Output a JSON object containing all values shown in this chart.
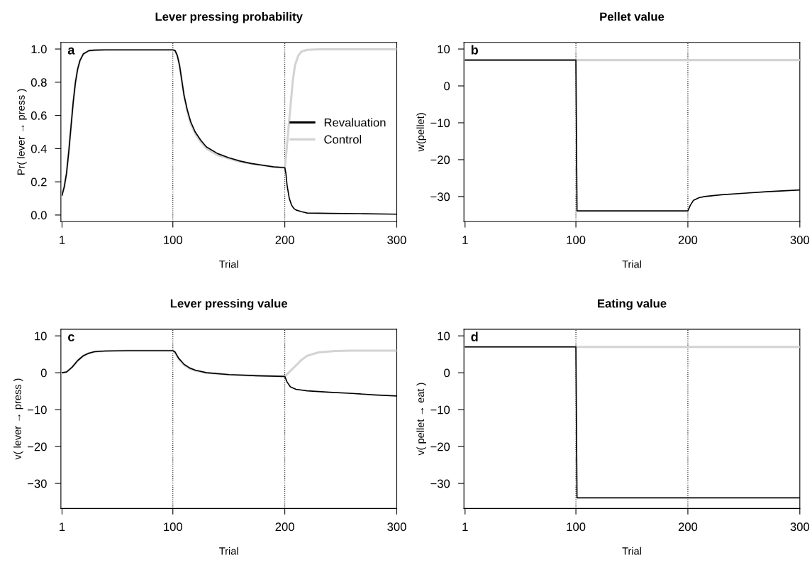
{
  "chart_data": [
    {
      "type": "line",
      "title": "Lever pressing probability",
      "xlabel": "Trial",
      "ylabel": "Pr( lever → press )",
      "annotations": [
        "a"
      ],
      "xlim": [
        0,
        300
      ],
      "xticks": [
        1,
        100,
        200,
        300
      ],
      "ylim": [
        -0.04,
        1.04
      ],
      "yticks": [
        {
          "value": 0,
          "label": "0.0"
        },
        0.2,
        0.4,
        0.6,
        0.8,
        {
          "value": 1,
          "label": "1.0"
        }
      ],
      "legend": "right",
      "grid": false,
      "line_style": "solid",
      "ref_lines": [
        {
          "axis": "x",
          "value": 100,
          "color": "#000000",
          "line_style": "dotted"
        },
        {
          "axis": "x",
          "value": 200,
          "color": "#000000",
          "line_style": "dotted"
        }
      ],
      "series": [
        {
          "name": "Revaluation",
          "color": "#000000",
          "x": [
            1,
            3,
            5,
            7,
            9,
            11,
            13,
            15,
            17,
            20,
            25,
            30,
            40,
            60,
            100,
            102,
            104,
            106,
            108,
            110,
            113,
            116,
            120,
            125,
            130,
            140,
            150,
            160,
            170,
            180,
            190,
            200,
            201,
            202,
            204,
            206,
            208,
            210,
            215,
            220,
            240,
            270,
            300
          ],
          "values": [
            0.12,
            0.17,
            0.25,
            0.38,
            0.53,
            0.68,
            0.8,
            0.88,
            0.93,
            0.97,
            0.99,
            0.993,
            0.995,
            0.995,
            0.995,
            0.99,
            0.96,
            0.9,
            0.81,
            0.72,
            0.63,
            0.56,
            0.5,
            0.45,
            0.41,
            0.37,
            0.345,
            0.325,
            0.31,
            0.3,
            0.29,
            0.285,
            0.25,
            0.18,
            0.1,
            0.06,
            0.04,
            0.03,
            0.02,
            0.012,
            0.01,
            0.008,
            0.005
          ]
        },
        {
          "name": "Control",
          "color": "#d3d3d3",
          "x": [
            1,
            3,
            5,
            7,
            9,
            11,
            13,
            15,
            17,
            20,
            25,
            30,
            40,
            60,
            100,
            102,
            104,
            106,
            108,
            110,
            113,
            116,
            120,
            125,
            130,
            140,
            150,
            160,
            170,
            180,
            190,
            200,
            201,
            203,
            205,
            207,
            209,
            212,
            215,
            220,
            230,
            300
          ],
          "values": [
            0.12,
            0.17,
            0.25,
            0.38,
            0.53,
            0.68,
            0.8,
            0.88,
            0.93,
            0.97,
            0.99,
            0.993,
            0.995,
            0.995,
            0.995,
            0.99,
            0.96,
            0.9,
            0.81,
            0.72,
            0.62,
            0.55,
            0.49,
            0.44,
            0.4,
            0.36,
            0.34,
            0.32,
            0.31,
            0.3,
            0.29,
            0.285,
            0.35,
            0.5,
            0.65,
            0.8,
            0.9,
            0.96,
            0.985,
            0.995,
            0.998,
            0.998
          ]
        }
      ]
    },
    {
      "type": "line",
      "title": "Pellet value",
      "xlabel": "Trial",
      "ylabel": "w(pellet)",
      "annotations": [
        "b"
      ],
      "xlim": [
        0,
        300
      ],
      "xticks": [
        1,
        100,
        200,
        300
      ],
      "ylim": [
        -36.8,
        11.8
      ],
      "yticks": [
        {
          "value": -30,
          "label": "−30"
        },
        {
          "value": -20,
          "label": "−20"
        },
        {
          "value": -10,
          "label": "−10"
        },
        0,
        10
      ],
      "grid": false,
      "line_style": "solid",
      "ref_lines": [
        {
          "axis": "x",
          "value": 100,
          "color": "#000000",
          "line_style": "dotted"
        },
        {
          "axis": "x",
          "value": 200,
          "color": "#000000",
          "line_style": "dotted"
        }
      ],
      "series": [
        {
          "color": "#000000",
          "x": [
            1,
            100,
            101,
            200,
            202,
            205,
            210,
            215,
            230,
            250,
            270,
            300
          ],
          "values": [
            7,
            7,
            -33.9,
            -33.9,
            -32.5,
            -31,
            -30.3,
            -30,
            -29.5,
            -29.1,
            -28.7,
            -28.2
          ]
        },
        {
          "color": "#d3d3d3",
          "x": [
            1,
            300
          ],
          "values": [
            7,
            7
          ]
        }
      ]
    },
    {
      "type": "line",
      "title": "Lever pressing value",
      "xlabel": "Trial",
      "ylabel": "v( lever → press )",
      "annotations": [
        "c"
      ],
      "xlim": [
        0,
        300
      ],
      "xticks": [
        1,
        100,
        200,
        300
      ],
      "ylim": [
        -36.8,
        11.8
      ],
      "yticks": [
        {
          "value": -30,
          "label": "−30"
        },
        {
          "value": -20,
          "label": "−20"
        },
        {
          "value": -10,
          "label": "−10"
        },
        0,
        10
      ],
      "grid": false,
      "line_style": "solid",
      "ref_lines": [
        {
          "axis": "x",
          "value": 100,
          "color": "#000000",
          "line_style": "dotted"
        },
        {
          "axis": "x",
          "value": 200,
          "color": "#000000",
          "line_style": "dotted"
        }
      ],
      "series": [
        {
          "color": "#000000",
          "x": [
            1,
            5,
            10,
            15,
            20,
            25,
            30,
            40,
            60,
            100,
            102,
            105,
            110,
            115,
            120,
            130,
            150,
            175,
            200,
            202,
            205,
            210,
            220,
            240,
            260,
            280,
            300
          ],
          "values": [
            0,
            0.2,
            1.5,
            3.3,
            4.6,
            5.3,
            5.7,
            5.9,
            6,
            6,
            5.6,
            4,
            2.3,
            1.3,
            0.7,
            0,
            -0.5,
            -0.8,
            -1,
            -2.5,
            -3.8,
            -4.5,
            -4.9,
            -5.3,
            -5.6,
            -6,
            -6.3
          ]
        },
        {
          "color": "#d3d3d3",
          "x": [
            1,
            5,
            10,
            15,
            20,
            25,
            30,
            40,
            60,
            100,
            102,
            105,
            110,
            115,
            120,
            130,
            150,
            175,
            200,
            205,
            210,
            215,
            220,
            230,
            245,
            260,
            300
          ],
          "values": [
            0,
            0.2,
            1.5,
            3.3,
            4.6,
            5.3,
            5.7,
            5.9,
            6,
            6,
            5.5,
            3.8,
            2.1,
            1.1,
            0.6,
            0,
            -0.5,
            -0.8,
            -1,
            0.5,
            2,
            3.5,
            4.6,
            5.5,
            5.9,
            6,
            6
          ]
        }
      ]
    },
    {
      "type": "line",
      "title": "Eating value",
      "xlabel": "Trial",
      "ylabel": "v( pellet → eat )",
      "annotations": [
        "d"
      ],
      "xlim": [
        0,
        300
      ],
      "xticks": [
        1,
        100,
        200,
        300
      ],
      "ylim": [
        -36.8,
        11.8
      ],
      "yticks": [
        {
          "value": -30,
          "label": "−30"
        },
        {
          "value": -20,
          "label": "−20"
        },
        {
          "value": -10,
          "label": "−10"
        },
        0,
        10
      ],
      "grid": false,
      "line_style": "solid",
      "ref_lines": [
        {
          "axis": "x",
          "value": 100,
          "color": "#000000",
          "line_style": "dotted"
        },
        {
          "axis": "x",
          "value": 200,
          "color": "#000000",
          "line_style": "dotted"
        }
      ],
      "series": [
        {
          "color": "#000000",
          "x": [
            1,
            100,
            101,
            300
          ],
          "values": [
            7,
            7,
            -33.9,
            -33.9
          ]
        },
        {
          "color": "#d3d3d3",
          "x": [
            1,
            300
          ],
          "values": [
            7,
            7
          ]
        }
      ]
    }
  ]
}
